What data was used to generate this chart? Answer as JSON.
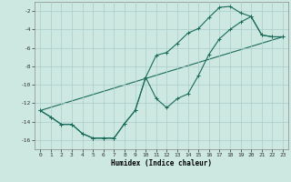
{
  "title": "",
  "xlabel": "Humidex (Indice chaleur)",
  "bg_color": "#cce8e0",
  "grid_color": "#aacccc",
  "line_color": "#1a6b5a",
  "xlim": [
    -0.5,
    23.5
  ],
  "ylim": [
    -17,
    -1
  ],
  "yticks": [
    -16,
    -14,
    -12,
    -10,
    -8,
    -6,
    -4,
    -2
  ],
  "xticks": [
    0,
    1,
    2,
    3,
    4,
    5,
    6,
    7,
    8,
    9,
    10,
    11,
    12,
    13,
    14,
    15,
    16,
    17,
    18,
    19,
    20,
    21,
    22,
    23
  ],
  "line1_x": [
    0,
    1,
    2,
    3,
    4,
    5,
    6,
    7,
    8,
    9,
    10,
    11,
    12,
    13,
    14,
    15,
    16,
    17,
    18,
    19,
    20,
    21,
    22,
    23
  ],
  "line1_y": [
    -12.8,
    -13.5,
    -14.3,
    -14.3,
    -15.3,
    -15.8,
    -15.8,
    -15.8,
    -14.2,
    -12.8,
    -9.2,
    -6.8,
    -6.5,
    -5.5,
    -4.4,
    -3.9,
    -2.7,
    -1.6,
    -1.5,
    -2.2,
    -2.6,
    -4.6,
    -4.8,
    -4.8
  ],
  "line2_x": [
    0,
    1,
    2,
    3,
    4,
    5,
    6,
    7,
    8,
    9,
    10,
    11,
    12,
    13,
    14,
    15,
    16,
    17,
    18,
    19,
    20,
    21,
    22,
    23
  ],
  "line2_y": [
    -12.8,
    -13.5,
    -14.3,
    -14.3,
    -15.3,
    -15.8,
    -15.8,
    -15.8,
    -14.2,
    -12.8,
    -9.2,
    -11.5,
    -12.5,
    -11.5,
    -11.0,
    -9.0,
    -6.7,
    -5.0,
    -4.0,
    -3.2,
    -2.6,
    -4.6,
    -4.8,
    -4.8
  ],
  "line3_x": [
    0,
    23
  ],
  "line3_y": [
    -12.8,
    -4.8
  ],
  "figsize": [
    3.2,
    2.0
  ],
  "dpi": 100
}
